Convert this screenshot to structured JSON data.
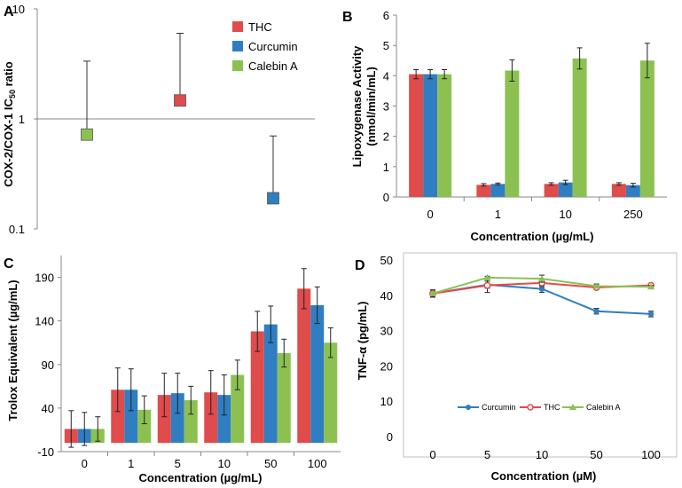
{
  "colors": {
    "thc": "#e04b4b",
    "curcumin": "#2f7ec1",
    "calebin": "#8cc152"
  },
  "legend": [
    "THC",
    "Curcumin",
    "Calebin A"
  ],
  "chart_data": [
    {
      "panel": "A",
      "type": "scatter",
      "ylabel": "COX-2/COX-1 IC50 ratio",
      "ylabel_main": "COX-2/COX-1 IC",
      "ylabel_sub": "50",
      "ylabel_tail": " ratio",
      "yscale": "log",
      "ylim": [
        0.1,
        10
      ],
      "yticks": [
        "0.1",
        "1",
        "10"
      ],
      "series": [
        {
          "name": "Calebin A",
          "x": 1,
          "value": 0.72,
          "err_up": 3.35
        },
        {
          "name": "THC",
          "x": 2,
          "value": 1.47,
          "err_up": 6.0
        },
        {
          "name": "Curcumin",
          "x": 3,
          "value": 0.19,
          "err_up": 0.7
        }
      ]
    },
    {
      "panel": "B",
      "type": "bar",
      "categories": [
        "0",
        "1",
        "10",
        "250"
      ],
      "xlabel": "Concentration (µg/mL)",
      "ylabel_line1": "Lipoxygenase Activity",
      "ylabel_line2": "(nmol/min/mL)",
      "ylim": [
        0,
        6
      ],
      "yticks": [
        "0",
        "1",
        "2",
        "3",
        "4",
        "5",
        "6"
      ],
      "series": [
        {
          "name": "THC",
          "values": [
            4.05,
            0.4,
            0.43,
            0.43
          ],
          "errors": [
            0.15,
            0.04,
            0.04,
            0.04
          ]
        },
        {
          "name": "Curcumin",
          "values": [
            4.05,
            0.43,
            0.48,
            0.39
          ],
          "errors": [
            0.15,
            0.03,
            0.07,
            0.06
          ]
        },
        {
          "name": "Calebin A",
          "values": [
            4.05,
            4.17,
            4.57,
            4.5
          ],
          "errors": [
            0.15,
            0.35,
            0.35,
            0.57
          ]
        }
      ]
    },
    {
      "panel": "C",
      "type": "bar",
      "categories": [
        "0",
        "1",
        "5",
        "10",
        "50",
        "100"
      ],
      "xlabel": "Concentration (µg/mL)",
      "ylabel": "Trolox Equivalent (µg/mL)",
      "ylim": [
        -10,
        215
      ],
      "yticks": [
        "-10",
        "40",
        "90",
        "140",
        "190"
      ],
      "ytick_values": [
        -10,
        40,
        90,
        140,
        190
      ],
      "series": [
        {
          "name": "THC",
          "values": [
            16,
            61,
            55,
            58,
            128,
            177
          ],
          "errors": [
            21,
            25,
            25,
            25,
            23,
            23
          ]
        },
        {
          "name": "Curcumin",
          "values": [
            16,
            61,
            57,
            55,
            136,
            158
          ],
          "errors": [
            19,
            24,
            23,
            23,
            21,
            21
          ]
        },
        {
          "name": "Calebin A",
          "values": [
            16,
            38,
            49,
            78,
            103,
            115
          ],
          "errors": [
            14,
            16,
            16,
            17,
            16,
            17
          ]
        }
      ]
    },
    {
      "panel": "D",
      "type": "line",
      "categories": [
        "0",
        "5",
        "10",
        "50",
        "100"
      ],
      "xlabel": "Concentration (µM)",
      "ylabel": "TNF-α (pg/mL)",
      "ylim": [
        0,
        50
      ],
      "yticks": [
        "0",
        "10",
        "20",
        "30",
        "40",
        "50"
      ],
      "series": [
        {
          "name": "Curcumin",
          "values": [
            40.5,
            43.0,
            41.8,
            35.5,
            34.7
          ],
          "errors": [
            1.0,
            1.0,
            1.0,
            0.8,
            0.8
          ]
        },
        {
          "name": "THC",
          "values": [
            40.5,
            42.8,
            43.5,
            42.2,
            42.8
          ],
          "errors": [
            1.0,
            2.0,
            1.0,
            0.5,
            0.4
          ]
        },
        {
          "name": "Calebin A",
          "values": [
            40.5,
            45.0,
            44.7,
            42.6,
            42.4
          ],
          "errors": [
            1.0,
            0.4,
            1.0,
            0.6,
            0.4
          ]
        }
      ]
    }
  ]
}
